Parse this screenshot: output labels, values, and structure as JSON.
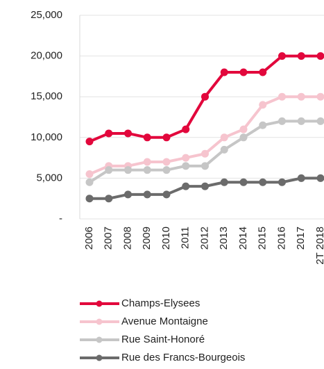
{
  "chart_data": {
    "type": "line",
    "categories": [
      "2006",
      "2007",
      "2008",
      "2009",
      "2010",
      "2011",
      "2012",
      "2013",
      "2014",
      "2015",
      "2016",
      "2017",
      "2T 2018"
    ],
    "series": [
      {
        "name": "Champs-Elysees",
        "color": "#e2073c",
        "values": [
          9500,
          10500,
          10500,
          10000,
          10000,
          11000,
          15000,
          18000,
          18000,
          18000,
          20000,
          20000,
          20000
        ]
      },
      {
        "name": "Avenue Montaigne",
        "color": "#f6c4ce",
        "values": [
          5500,
          6500,
          6500,
          7000,
          7000,
          7500,
          8000,
          10000,
          11000,
          14000,
          15000,
          15000,
          15000
        ]
      },
      {
        "name": "Rue Saint-Honoré",
        "color": "#c6c6c6",
        "values": [
          4500,
          6000,
          6000,
          6000,
          6000,
          6500,
          6500,
          8500,
          10000,
          11500,
          12000,
          12000,
          12000
        ]
      },
      {
        "name": "Rue des Francs-Bourgeois",
        "color": "#6b6b6b",
        "values": [
          2500,
          2500,
          3000,
          3000,
          3000,
          4000,
          4000,
          4500,
          4500,
          4500,
          4500,
          5000,
          5000
        ]
      }
    ],
    "ylim": [
      0,
      25000
    ],
    "yticks": [
      {
        "value": 0,
        "label": "-"
      },
      {
        "value": 5000,
        "label": "5,000"
      },
      {
        "value": 10000,
        "label": "10,000"
      },
      {
        "value": 15000,
        "label": "15,000"
      },
      {
        "value": 20000,
        "label": "20,000"
      },
      {
        "value": 25000,
        "label": "25,000"
      }
    ],
    "grid": true
  }
}
